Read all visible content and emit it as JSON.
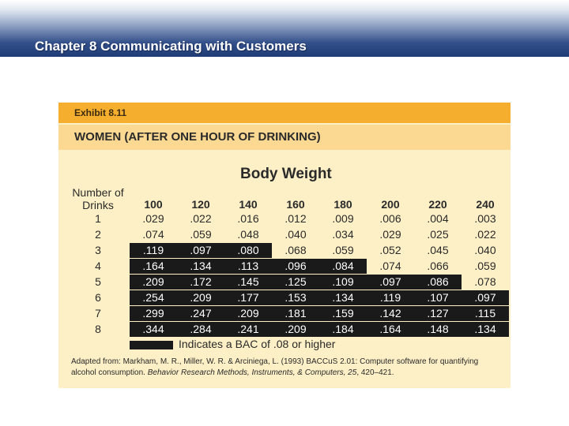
{
  "slide": {
    "title": "Chapter 8 Communicating with Customers"
  },
  "exhibit": {
    "label": "Exhibit 8.11",
    "title": "WOMEN (AFTER ONE HOUR OF DRINKING)",
    "body_weight_title": "Body Weight",
    "row_header_line1": "Number of",
    "row_header_line2": "Drinks",
    "weights": [
      "100",
      "120",
      "140",
      "160",
      "180",
      "200",
      "220",
      "240"
    ],
    "rows": [
      {
        "drinks": "1",
        "values": [
          ".029",
          ".022",
          ".016",
          ".012",
          ".009",
          ".006",
          ".004",
          ".003"
        ]
      },
      {
        "drinks": "2",
        "values": [
          ".074",
          ".059",
          ".048",
          ".040",
          ".034",
          ".029",
          ".025",
          ".022"
        ]
      },
      {
        "drinks": "3",
        "values": [
          ".119",
          ".097",
          ".080",
          ".068",
          ".059",
          ".052",
          ".045",
          ".040"
        ]
      },
      {
        "drinks": "4",
        "values": [
          ".164",
          ".134",
          ".113",
          ".096",
          ".084",
          ".074",
          ".066",
          ".059"
        ]
      },
      {
        "drinks": "5",
        "values": [
          ".209",
          ".172",
          ".145",
          ".125",
          ".109",
          ".097",
          ".086",
          ".078"
        ]
      },
      {
        "drinks": "6",
        "values": [
          ".254",
          ".209",
          ".177",
          ".153",
          ".134",
          ".119",
          ".107",
          ".097"
        ]
      },
      {
        "drinks": "7",
        "values": [
          ".299",
          ".247",
          ".209",
          ".181",
          ".159",
          ".142",
          ".127",
          ".115"
        ]
      },
      {
        "drinks": "8",
        "values": [
          ".344",
          ".284",
          ".241",
          ".209",
          ".184",
          ".164",
          ".148",
          ".134"
        ]
      }
    ],
    "highlighted_cells_per_row": [
      0,
      0,
      3,
      5,
      7,
      8,
      8,
      8
    ],
    "legend_text": "Indicates a BAC of .08 or higher",
    "citation_part1": "Adapted from: Markham, M. R., Miller, W. R. & Arciniega, L. (1993) BACCuS 2.01: Computer software for quantifying alcohol consumption. ",
    "citation_italic": "Behavior Research Methods, Instruments, & Computers, 25",
    "citation_part2": ", 420–421.",
    "colors": {
      "label_bar": "#f5ae2e",
      "title_bar": "#fbd992",
      "panel": "#fdf0c6",
      "highlight": "#1a1a1a"
    }
  }
}
